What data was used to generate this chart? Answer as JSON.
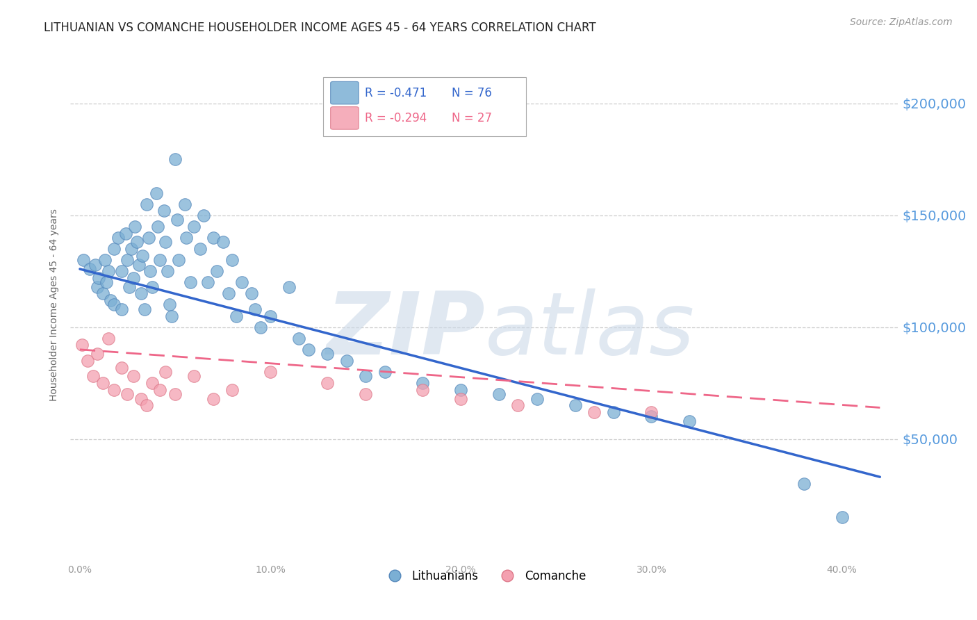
{
  "title": "LITHUANIAN VS COMANCHE HOUSEHOLDER INCOME AGES 45 - 64 YEARS CORRELATION CHART",
  "source": "Source: ZipAtlas.com",
  "ylabel": "Householder Income Ages 45 - 64 years",
  "xlabel_ticks": [
    "0.0%",
    "10.0%",
    "20.0%",
    "30.0%",
    "40.0%"
  ],
  "xlabel_vals": [
    0.0,
    0.1,
    0.2,
    0.3,
    0.4
  ],
  "ylabel_ticks": [
    "$50,000",
    "$100,000",
    "$150,000",
    "$200,000"
  ],
  "ylabel_vals": [
    50000,
    100000,
    150000,
    200000
  ],
  "ylim": [
    -5000,
    225000
  ],
  "xlim": [
    -0.005,
    0.43
  ],
  "background_color": "#ffffff",
  "grid_color": "#cccccc",
  "title_fontsize": 12,
  "source_fontsize": 10,
  "watermark": "ZIPatlas",
  "watermark_color": "#ccd9e8",
  "lith_color": "#7bafd4",
  "lith_edge_color": "#5588bb",
  "com_color": "#f4a0b0",
  "com_edge_color": "#dd7788",
  "lith_line_color": "#3366cc",
  "com_line_color": "#ee6688",
  "lith_R": "-0.471",
  "lith_N": "76",
  "com_R": "-0.294",
  "com_N": "27",
  "lith_line_x0": 0.0,
  "lith_line_y0": 126000,
  "lith_line_x1": 0.42,
  "lith_line_y1": 33000,
  "com_line_x0": 0.0,
  "com_line_y0": 90000,
  "com_line_x1": 0.42,
  "com_line_y1": 64000,
  "lith_scatter_x": [
    0.002,
    0.005,
    0.008,
    0.009,
    0.01,
    0.012,
    0.013,
    0.014,
    0.015,
    0.016,
    0.018,
    0.018,
    0.02,
    0.022,
    0.022,
    0.024,
    0.025,
    0.026,
    0.027,
    0.028,
    0.029,
    0.03,
    0.031,
    0.032,
    0.033,
    0.034,
    0.035,
    0.036,
    0.037,
    0.038,
    0.04,
    0.041,
    0.042,
    0.044,
    0.045,
    0.046,
    0.047,
    0.048,
    0.05,
    0.051,
    0.052,
    0.055,
    0.056,
    0.058,
    0.06,
    0.063,
    0.065,
    0.067,
    0.07,
    0.072,
    0.075,
    0.078,
    0.08,
    0.082,
    0.085,
    0.09,
    0.092,
    0.095,
    0.1,
    0.11,
    0.115,
    0.12,
    0.13,
    0.14,
    0.15,
    0.16,
    0.18,
    0.2,
    0.22,
    0.24,
    0.26,
    0.28,
    0.3,
    0.32,
    0.38,
    0.4
  ],
  "lith_scatter_y": [
    130000,
    126000,
    128000,
    118000,
    122000,
    115000,
    130000,
    120000,
    125000,
    112000,
    135000,
    110000,
    140000,
    125000,
    108000,
    142000,
    130000,
    118000,
    135000,
    122000,
    145000,
    138000,
    128000,
    115000,
    132000,
    108000,
    155000,
    140000,
    125000,
    118000,
    160000,
    145000,
    130000,
    152000,
    138000,
    125000,
    110000,
    105000,
    175000,
    148000,
    130000,
    155000,
    140000,
    120000,
    145000,
    135000,
    150000,
    120000,
    140000,
    125000,
    138000,
    115000,
    130000,
    105000,
    120000,
    115000,
    108000,
    100000,
    105000,
    118000,
    95000,
    90000,
    88000,
    85000,
    78000,
    80000,
    75000,
    72000,
    70000,
    68000,
    65000,
    62000,
    60000,
    58000,
    30000,
    15000
  ],
  "com_scatter_x": [
    0.001,
    0.004,
    0.007,
    0.009,
    0.012,
    0.015,
    0.018,
    0.022,
    0.025,
    0.028,
    0.032,
    0.035,
    0.038,
    0.042,
    0.045,
    0.05,
    0.06,
    0.07,
    0.08,
    0.1,
    0.13,
    0.15,
    0.18,
    0.2,
    0.23,
    0.27,
    0.3
  ],
  "com_scatter_y": [
    92000,
    85000,
    78000,
    88000,
    75000,
    95000,
    72000,
    82000,
    70000,
    78000,
    68000,
    65000,
    75000,
    72000,
    80000,
    70000,
    78000,
    68000,
    72000,
    80000,
    75000,
    70000,
    72000,
    68000,
    65000,
    62000,
    62000
  ]
}
